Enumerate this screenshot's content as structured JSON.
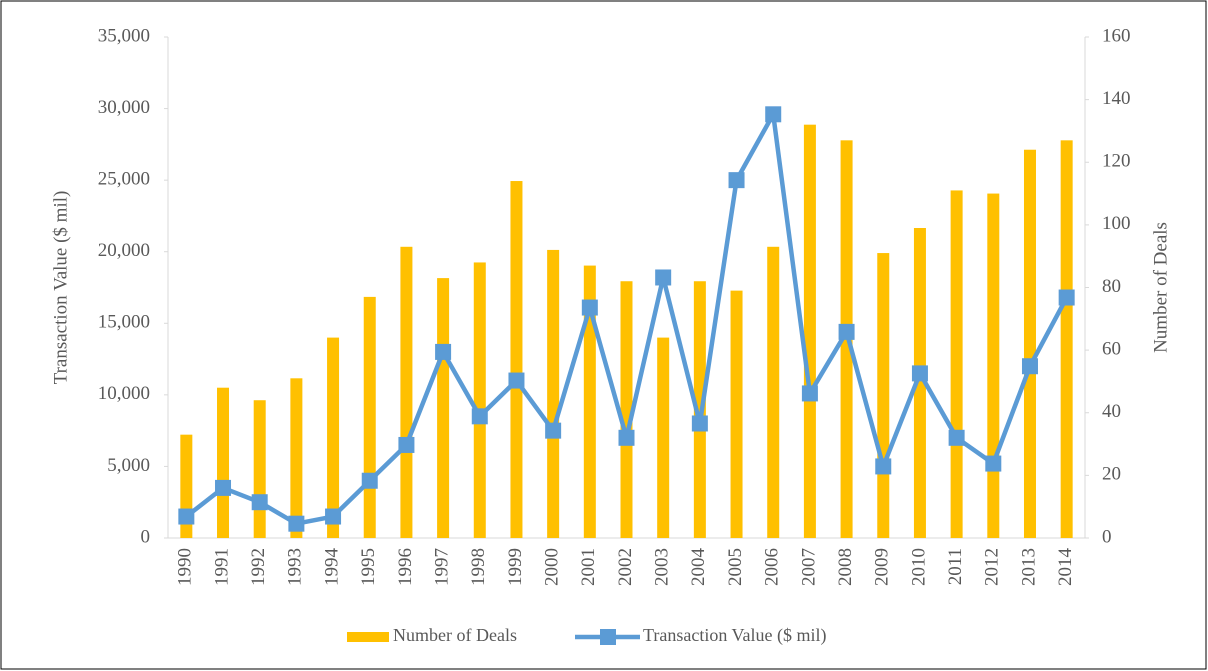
{
  "chart_data": {
    "type": "bar_line",
    "categories": [
      "1990",
      "1991",
      "1992",
      "1993",
      "1994",
      "1995",
      "1996",
      "1997",
      "1998",
      "1999",
      "2000",
      "2001",
      "2002",
      "2003",
      "2004",
      "2005",
      "2006",
      "2007",
      "2008",
      "2009",
      "2010",
      "2011",
      "2012",
      "2013",
      "2014"
    ],
    "series": [
      {
        "name": "Number of Deals",
        "type": "bar",
        "axis": "y2",
        "color": "#ffc000",
        "values": [
          33,
          48,
          44,
          51,
          64,
          77,
          93,
          83,
          88,
          114,
          92,
          87,
          82,
          64,
          82,
          79,
          93,
          132,
          127,
          91,
          99,
          111,
          110,
          124,
          127
        ]
      },
      {
        "name": "Transaction Value ($ mil)",
        "type": "line",
        "axis": "y",
        "color": "#5b9bd5",
        "values": [
          1500,
          3500,
          2500,
          1000,
          1500,
          4000,
          6500,
          13000,
          8500,
          11000,
          7500,
          16100,
          7000,
          18200,
          8000,
          25000,
          29600,
          10100,
          14400,
          5000,
          11500,
          7000,
          5200,
          12000,
          16800
        ]
      }
    ],
    "y_label": "Transaction Value ($ mil)",
    "y2_label": "Number of Deals",
    "ylim": [
      0,
      35000
    ],
    "yticks": [
      0,
      {
        "value": 5000,
        "label": "5,000"
      },
      {
        "value": 10000,
        "label": "10,000"
      },
      {
        "value": 15000,
        "label": "15,000"
      },
      {
        "value": 20000,
        "label": "20,000"
      },
      {
        "value": 25000,
        "label": "25,000"
      },
      {
        "value": 30000,
        "label": "30,000"
      },
      {
        "value": 35000,
        "label": "35,000"
      }
    ],
    "y2lim": [
      0,
      160
    ],
    "y2ticks": [
      0,
      20,
      40,
      60,
      80,
      100,
      120,
      140,
      160
    ],
    "legend": "bottom"
  }
}
